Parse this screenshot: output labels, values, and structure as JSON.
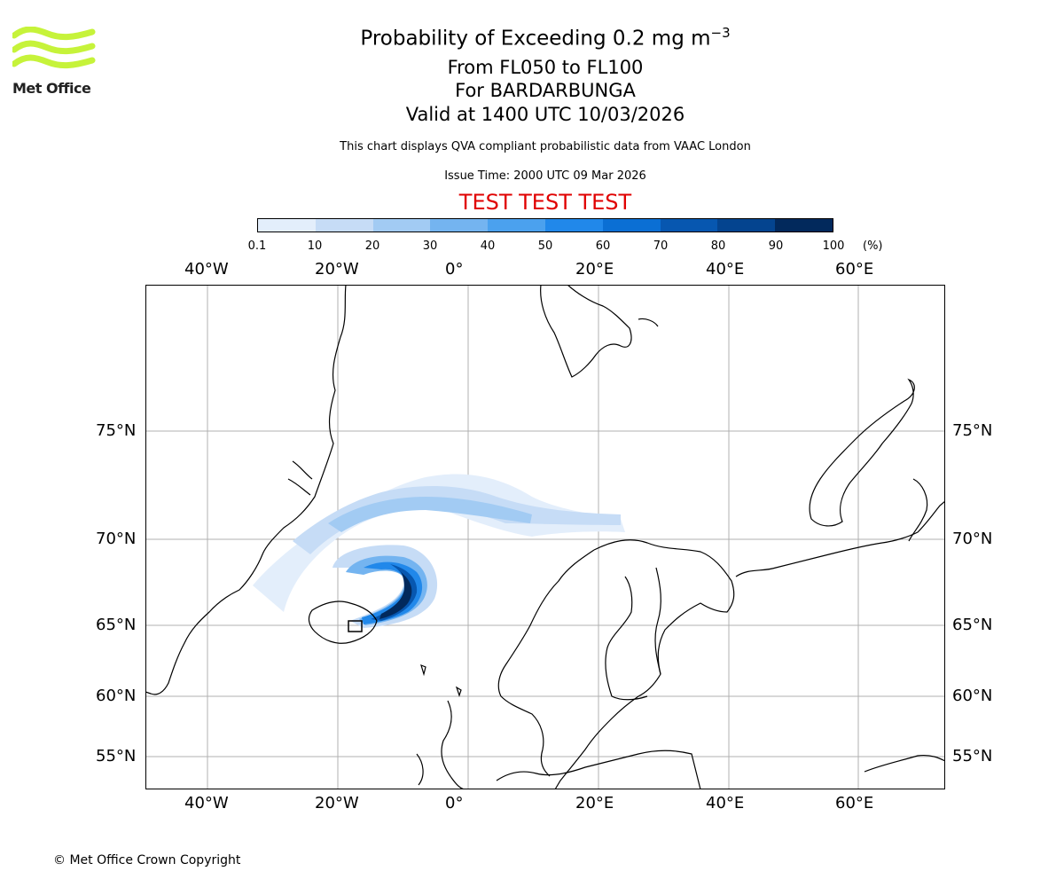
{
  "header": {
    "title_main": "Probability of Exceeding 0.2 mg m",
    "title_exp": "−3",
    "level_range": "From FL050 to FL100",
    "volcano": "For BARDARBUNGA",
    "valid_time": "Valid at 1400 UTC 10/03/2026",
    "description": "This chart displays QVA compliant probabilistic data from VAAC London",
    "issue_time": "Issue Time: 2000 UTC 09 Mar 2026",
    "test_banner": "TEST TEST TEST"
  },
  "logo": {
    "text": "Met Office",
    "color": "#c6f33a"
  },
  "colorbar": {
    "ticks": [
      "0.1",
      "10",
      "20",
      "30",
      "40",
      "50",
      "60",
      "70",
      "80",
      "90",
      "100"
    ],
    "unit": "(%)",
    "colors": [
      "#e3eefb",
      "#c6dcf6",
      "#a2cbf3",
      "#74b4f0",
      "#4ba1ee",
      "#2188ea",
      "#0b6fd4",
      "#0757b0",
      "#04448f",
      "#02295c"
    ]
  },
  "map": {
    "projection": "polar stereographic",
    "lon_labels": [
      "40°W",
      "20°W",
      "0°",
      "20°E",
      "40°E",
      "60°E"
    ],
    "lat_labels": [
      "75°N",
      "70°N",
      "65°N",
      "60°N",
      "55°N"
    ],
    "volcano_lon": -17.5,
    "volcano_lat": 64.6
  },
  "footer": {
    "copyright": "© Met Office Crown Copyright"
  }
}
